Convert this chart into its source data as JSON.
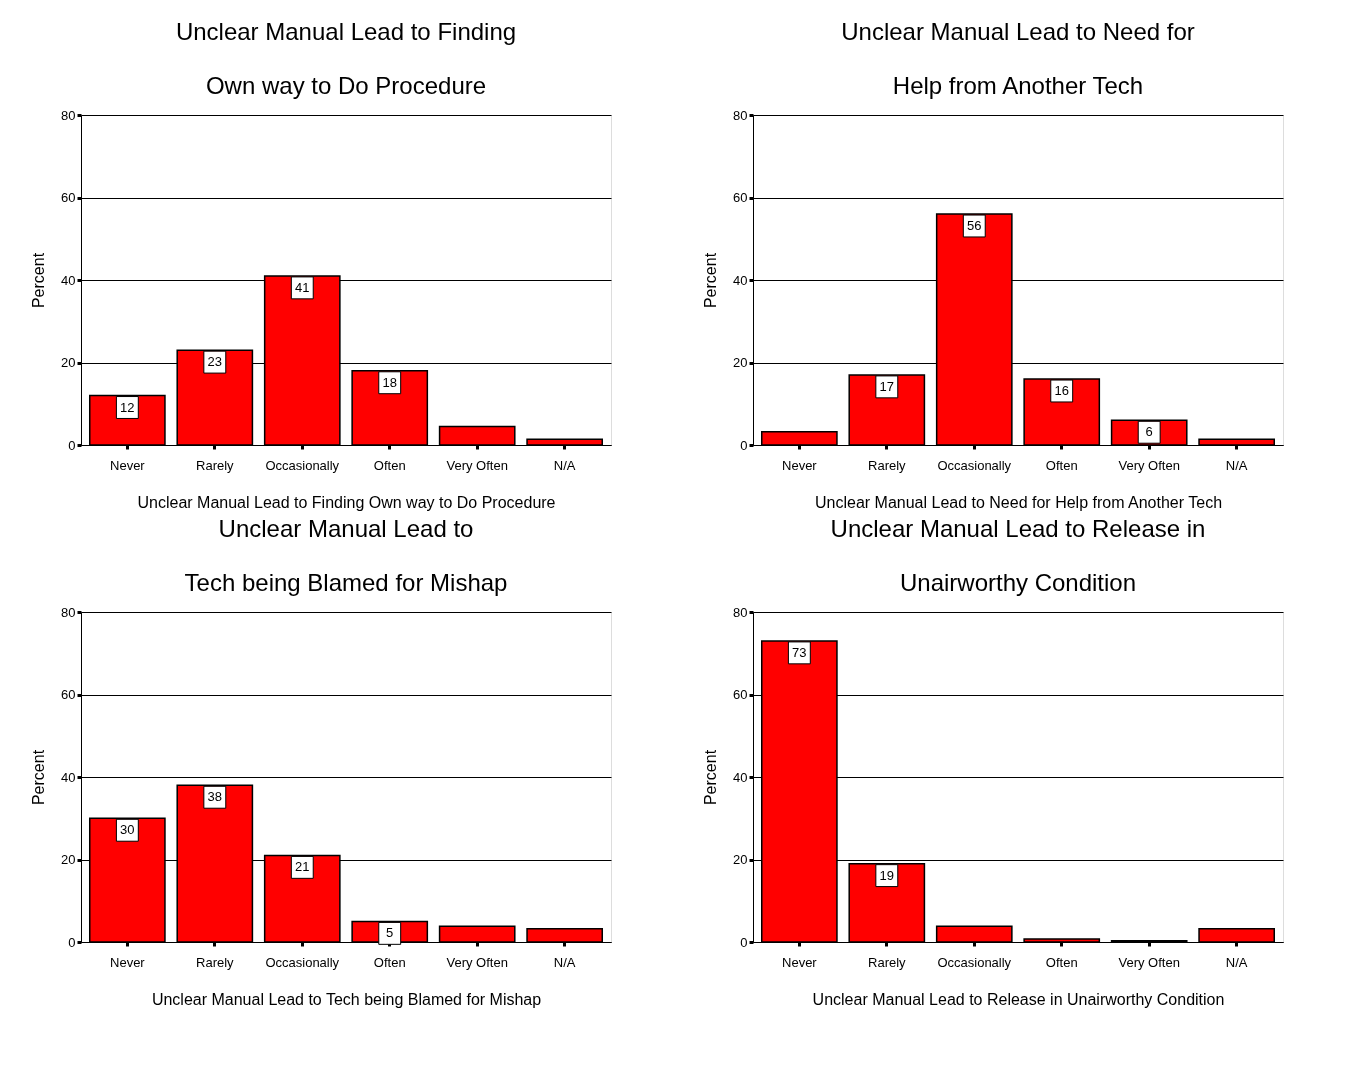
{
  "chart_data": [
    {
      "type": "bar",
      "title": "Unclear Manual Lead to Finding\nOwn way to Do Procedure",
      "xlabel": "Unclear Manual Lead to Finding Own way to Do Procedure",
      "ylabel": "Percent",
      "categories": [
        "Never",
        "Rarely",
        "Occasionally",
        "Often",
        "Very Often",
        "N/A"
      ],
      "values": [
        12,
        23,
        41,
        18,
        4.5,
        1.4
      ],
      "value_labels": [
        "12",
        "23",
        "41",
        "18",
        null,
        null
      ],
      "color": "#ff0000",
      "ylim": [
        0,
        80
      ],
      "yticks": [
        0,
        20,
        40,
        60,
        80
      ],
      "grid": "y"
    },
    {
      "type": "bar",
      "title": "Unclear Manual Lead to Need for\nHelp from Another Tech",
      "xlabel": "Unclear Manual Lead to Need for Help from Another Tech",
      "ylabel": "Percent",
      "categories": [
        "Never",
        "Rarely",
        "Occasionally",
        "Often",
        "Very Often",
        "N/A"
      ],
      "values": [
        3.2,
        17,
        56,
        16,
        6,
        1.4
      ],
      "value_labels": [
        null,
        "17",
        "56",
        "16",
        "6",
        null
      ],
      "color": "#ff0000",
      "ylim": [
        0,
        80
      ],
      "yticks": [
        0,
        20,
        40,
        60,
        80
      ],
      "grid": "y"
    },
    {
      "type": "bar",
      "title": "Unclear Manual Lead to\nTech being Blamed for Mishap",
      "xlabel": "Unclear Manual Lead to Tech being Blamed for Mishap",
      "ylabel": "Percent",
      "categories": [
        "Never",
        "Rarely",
        "Occasionally",
        "Often",
        "Very Often",
        "N/A"
      ],
      "values": [
        30,
        38,
        21,
        5,
        3.8,
        3.2
      ],
      "value_labels": [
        "30",
        "38",
        "21",
        "5",
        null,
        null
      ],
      "color": "#ff0000",
      "ylim": [
        0,
        80
      ],
      "yticks": [
        0,
        20,
        40,
        60,
        80
      ],
      "grid": "y"
    },
    {
      "type": "bar",
      "title": "Unclear Manual Lead to Release in\nUnairworthy Condition",
      "xlabel": "Unclear Manual Lead to Release in Unairworthy Condition",
      "ylabel": "Percent",
      "categories": [
        "Never",
        "Rarely",
        "Occasionally",
        "Often",
        "Very Often",
        "N/A"
      ],
      "values": [
        73,
        19,
        3.8,
        0.7,
        0.3,
        3.2
      ],
      "value_labels": [
        "73",
        "19",
        null,
        null,
        null,
        null
      ],
      "color": "#ff0000",
      "ylim": [
        0,
        80
      ],
      "yticks": [
        0,
        20,
        40,
        60,
        80
      ],
      "grid": "y"
    }
  ]
}
